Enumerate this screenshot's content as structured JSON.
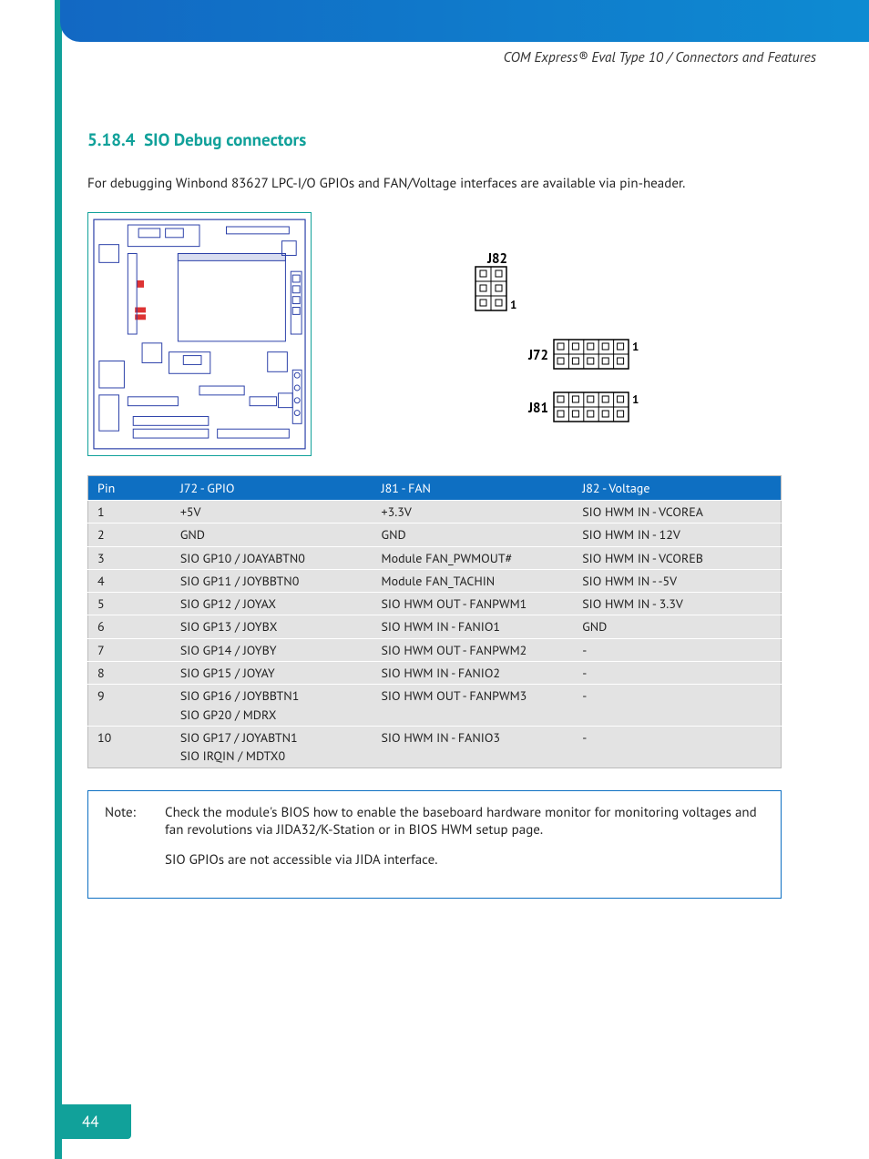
{
  "header": {
    "breadcrumb": "COM Express® Eval Type 10 / Connectors and Features"
  },
  "section": {
    "number": "5.18.4",
    "title": "SIO Debug connectors",
    "intro": "For debugging Winbond 83627 LPC-I/O GPIOs and FAN/Voltage interfaces are available via pin-header."
  },
  "connectors": {
    "j82": {
      "label": "J82",
      "cols": 2,
      "rows": 3,
      "pin1_label": "1"
    },
    "j72": {
      "label": "J72",
      "cols": 5,
      "rows": 2,
      "pin1_label": "1"
    },
    "j81": {
      "label": "J81",
      "cols": 5,
      "rows": 2,
      "pin1_label": "1"
    }
  },
  "table": {
    "columns": [
      "Pin",
      "J72 - GPIO",
      "J81 - FAN",
      "J82 - Voltage"
    ],
    "col_widths": [
      "12%",
      "29%",
      "29%",
      "30%"
    ],
    "rows": [
      [
        "1",
        "+5V",
        "+3.3V",
        "SIO HWM IN - VCOREA"
      ],
      [
        "2",
        "GND",
        "GND",
        "SIO HWM IN - 12V"
      ],
      [
        "3",
        "SIO GP10 / JOAYABTN0",
        "Module FAN_PWMOUT#",
        "SIO HWM IN - VCOREB"
      ],
      [
        "4",
        "SIO GP11 / JOYBBTN0",
        "Module FAN_TACHIN",
        "SIO HWM IN - -5V"
      ],
      [
        "5",
        "SIO GP12 / JOYAX",
        "SIO HWM OUT - FANPWM1",
        "SIO HWM IN - 3.3V"
      ],
      [
        "6",
        "SIO GP13 / JOYBX",
        "SIO HWM IN - FANIO1",
        "GND"
      ],
      [
        "7",
        "SIO GP14 / JOYBY",
        "SIO HWM OUT - FANPWM2",
        "-"
      ],
      [
        "8",
        "SIO GP15 / JOYAY",
        "SIO HWM IN - FANIO2",
        "-"
      ],
      [
        "9",
        "SIO GP16 / JOYBBTN1\nSIO GP20 / MDRX",
        "SIO HWM OUT - FANPWM3",
        "-"
      ],
      [
        "10",
        "SIO GP17 / JOYABTN1\nSIO IRQIN / MDTX0",
        "SIO HWM IN - FANIO3",
        "-"
      ]
    ]
  },
  "note": {
    "label": "Note:",
    "p1": "Check the module's BIOS how to enable the baseboard hardware monitor for monitoring voltages and fan revolutions via JIDA32/K-Station or in BIOS HWM setup page.",
    "p2": "SIO GPIOs are not accessible via JIDA interface."
  },
  "footer": {
    "page_num": "44"
  },
  "colors": {
    "teal": "#11a19a",
    "blue": "#0e6fc2",
    "row_bg": "#e3e3e3"
  }
}
